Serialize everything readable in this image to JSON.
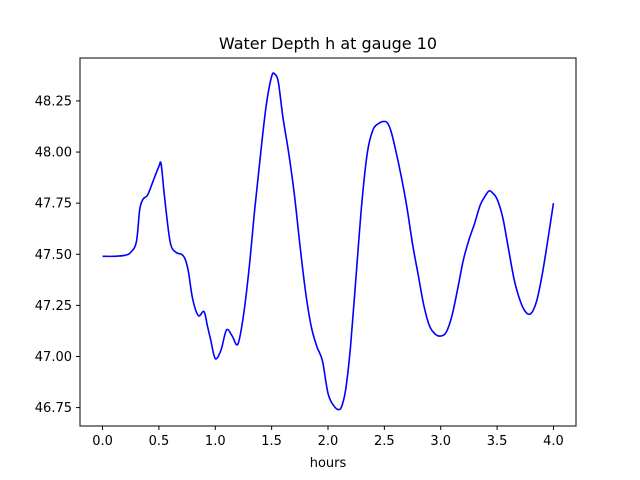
{
  "chart_data": {
    "type": "line",
    "title": "Water Depth h at gauge 10",
    "xlabel": "hours",
    "ylabel": "",
    "xlim": [
      -0.2,
      4.2
    ],
    "ylim": [
      46.66,
      48.46
    ],
    "xticks": [
      0.0,
      0.5,
      1.0,
      1.5,
      2.0,
      2.5,
      3.0,
      3.5,
      4.0
    ],
    "xtick_labels": [
      "0.0",
      "0.5",
      "1.0",
      "1.5",
      "2.0",
      "2.5",
      "3.0",
      "3.5",
      "4.0"
    ],
    "yticks": [
      46.75,
      47.0,
      47.25,
      47.5,
      47.75,
      48.0,
      48.25
    ],
    "ytick_labels": [
      "46.75",
      "47.00",
      "47.25",
      "47.50",
      "47.75",
      "48.00",
      "48.25"
    ],
    "grid": false,
    "series": [
      {
        "color": "#0000ff",
        "x": [
          0.0,
          0.1,
          0.2,
          0.25,
          0.3,
          0.33,
          0.36,
          0.4,
          0.45,
          0.5,
          0.52,
          0.55,
          0.6,
          0.65,
          0.7,
          0.73,
          0.76,
          0.8,
          0.85,
          0.9,
          0.93,
          0.96,
          1.0,
          1.05,
          1.1,
          1.15,
          1.2,
          1.25,
          1.3,
          1.35,
          1.4,
          1.45,
          1.5,
          1.53,
          1.56,
          1.6,
          1.65,
          1.7,
          1.75,
          1.8,
          1.85,
          1.9,
          1.95,
          2.0,
          2.05,
          2.1,
          2.13,
          2.16,
          2.2,
          2.25,
          2.3,
          2.35,
          2.4,
          2.45,
          2.5,
          2.53,
          2.56,
          2.6,
          2.65,
          2.7,
          2.75,
          2.8,
          2.85,
          2.9,
          2.95,
          3.0,
          3.05,
          3.1,
          3.15,
          3.2,
          3.25,
          3.3,
          3.35,
          3.4,
          3.43,
          3.46,
          3.5,
          3.55,
          3.6,
          3.65,
          3.7,
          3.75,
          3.8,
          3.85,
          3.9,
          3.95,
          4.0
        ],
        "y": [
          47.49,
          47.49,
          47.495,
          47.51,
          47.56,
          47.72,
          47.77,
          47.79,
          47.86,
          47.93,
          47.94,
          47.78,
          47.56,
          47.51,
          47.5,
          47.48,
          47.42,
          47.28,
          47.2,
          47.22,
          47.15,
          47.08,
          46.99,
          47.03,
          47.13,
          47.1,
          47.06,
          47.2,
          47.43,
          47.72,
          47.98,
          48.22,
          48.37,
          48.38,
          48.34,
          48.17,
          48.0,
          47.8,
          47.55,
          47.32,
          47.15,
          47.05,
          46.98,
          46.82,
          46.76,
          46.74,
          46.77,
          46.85,
          47.05,
          47.4,
          47.75,
          48.0,
          48.11,
          48.14,
          48.15,
          48.14,
          48.1,
          48.01,
          47.88,
          47.73,
          47.55,
          47.4,
          47.25,
          47.15,
          47.11,
          47.1,
          47.12,
          47.2,
          47.33,
          47.47,
          47.57,
          47.65,
          47.74,
          47.79,
          47.81,
          47.8,
          47.77,
          47.68,
          47.53,
          47.38,
          47.28,
          47.22,
          47.21,
          47.27,
          47.4,
          47.57,
          47.75
        ]
      }
    ]
  }
}
